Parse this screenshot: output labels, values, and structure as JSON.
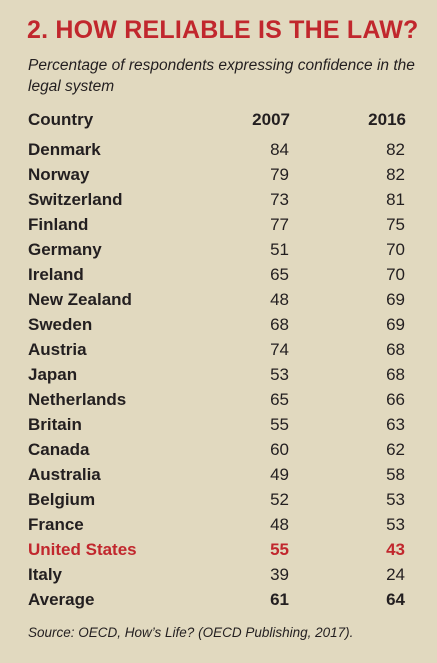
{
  "title": "2. HOW RELIABLE IS THE LAW?",
  "subtitle": "Percentage of respondents expressing confidence in the legal system",
  "source": "Source: OECD, How’s Life? (OECD Publishing, 2017).",
  "colors": {
    "background": "#e1d9bf",
    "accent": "#c1272d",
    "text": "#231f20"
  },
  "chart_data": {
    "type": "table",
    "title": "2. HOW RELIABLE IS THE LAW?",
    "subtitle": "Percentage of respondents expressing confidence in the legal system",
    "columns": [
      "Country",
      "2007",
      "2016"
    ],
    "rows": [
      {
        "country": "Denmark",
        "v2007": 84,
        "v2016": 82
      },
      {
        "country": "Norway",
        "v2007": 79,
        "v2016": 82
      },
      {
        "country": "Switzerland",
        "v2007": 73,
        "v2016": 81
      },
      {
        "country": "Finland",
        "v2007": 77,
        "v2016": 75
      },
      {
        "country": "Germany",
        "v2007": 51,
        "v2016": 70
      },
      {
        "country": "Ireland",
        "v2007": 65,
        "v2016": 70
      },
      {
        "country": "New Zealand",
        "v2007": 48,
        "v2016": 69
      },
      {
        "country": "Sweden",
        "v2007": 68,
        "v2016": 69
      },
      {
        "country": "Austria",
        "v2007": 74,
        "v2016": 68
      },
      {
        "country": "Japan",
        "v2007": 53,
        "v2016": 68
      },
      {
        "country": "Netherlands",
        "v2007": 65,
        "v2016": 66
      },
      {
        "country": "Britain",
        "v2007": 55,
        "v2016": 63
      },
      {
        "country": "Canada",
        "v2007": 60,
        "v2016": 62
      },
      {
        "country": "Australia",
        "v2007": 49,
        "v2016": 58
      },
      {
        "country": "Belgium",
        "v2007": 52,
        "v2016": 53
      },
      {
        "country": "France",
        "v2007": 48,
        "v2016": 53
      },
      {
        "country": "United States",
        "v2007": 55,
        "v2016": 43,
        "highlight": true
      },
      {
        "country": "Italy",
        "v2007": 39,
        "v2016": 24
      },
      {
        "country": "Average",
        "v2007": 61,
        "v2016": 64,
        "average": true
      }
    ],
    "source": "Source: OECD, How’s Life? (OECD Publishing, 2017)."
  }
}
